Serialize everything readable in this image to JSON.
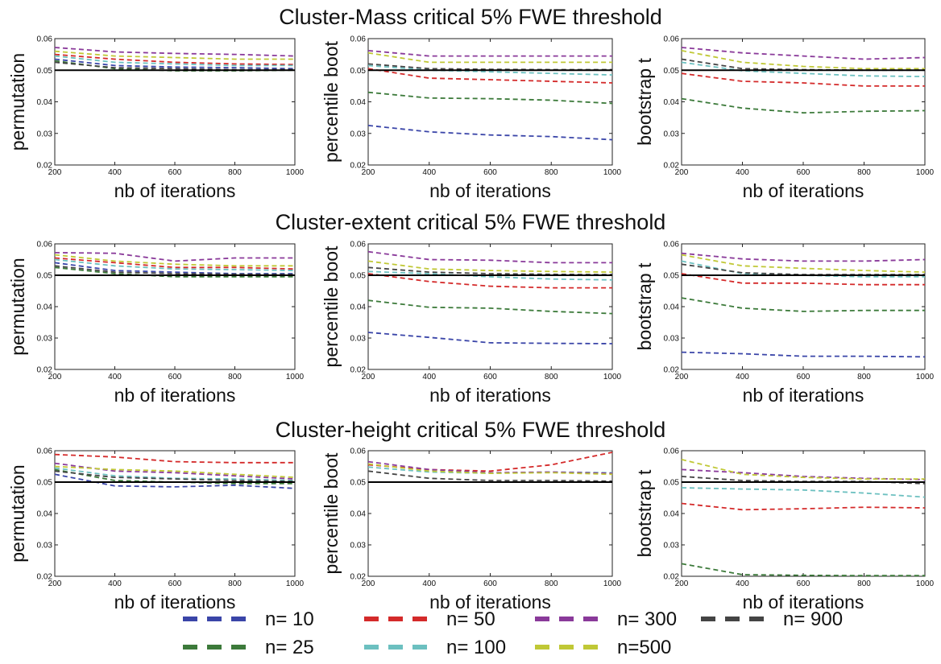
{
  "legend": {
    "items": [
      {
        "label": "n= 10",
        "color": "#3a45a8"
      },
      {
        "label": "n= 25",
        "color": "#3c7a3a"
      },
      {
        "label": "n= 50",
        "color": "#d42a2a"
      },
      {
        "label": "n= 100",
        "color": "#6cc0c0"
      },
      {
        "label": "n= 300",
        "color": "#8a3a9a"
      },
      {
        "label": "n=500",
        "color": "#c0c836"
      },
      {
        "label": "n= 900",
        "color": "#444444"
      }
    ]
  },
  "chart_data": [
    {
      "type": "line",
      "title": "Cluster-Mass critical 5% FWE threshold",
      "panels": [
        {
          "xlabel": "nb of iterations",
          "ylabel": "permutation",
          "xlim": [
            200,
            1000
          ],
          "ylim": [
            0.02,
            0.06
          ],
          "x": [
            200,
            400,
            600,
            800,
            1000
          ],
          "xticks": [
            "200",
            "400",
            "600",
            "800",
            "1000"
          ],
          "yticks": [
            "0.02",
            "0.03",
            "0.04",
            "0.05",
            "0.06"
          ],
          "reference": 0.05,
          "series": [
            {
              "name": "n= 10",
              "values": [
                0.0535,
                0.0515,
                0.051,
                0.0508,
                0.0505
              ]
            },
            {
              "name": "n= 25",
              "values": [
                0.053,
                0.0505,
                0.0498,
                0.0498,
                0.05
              ]
            },
            {
              "name": "n= 50",
              "values": [
                0.055,
                0.0535,
                0.0525,
                0.052,
                0.0518
              ]
            },
            {
              "name": "n= 100",
              "values": [
                0.0545,
                0.0525,
                0.052,
                0.0515,
                0.0515
              ]
            },
            {
              "name": "n= 300",
              "values": [
                0.0572,
                0.0558,
                0.0553,
                0.055,
                0.0545
              ]
            },
            {
              "name": "n=500",
              "values": [
                0.056,
                0.0545,
                0.054,
                0.0535,
                0.0535
              ]
            },
            {
              "name": "n= 900",
              "values": [
                0.0525,
                0.0508,
                0.0505,
                0.0502,
                0.0502
              ]
            }
          ]
        },
        {
          "xlabel": "nb of iterations",
          "ylabel": "percentile boot",
          "xlim": [
            200,
            1000
          ],
          "ylim": [
            0.02,
            0.06
          ],
          "x": [
            200,
            400,
            600,
            800,
            1000
          ],
          "xticks": [
            "200",
            "400",
            "600",
            "800",
            "1000"
          ],
          "yticks": [
            "0.02",
            "0.03",
            "0.04",
            "0.05",
            "0.06"
          ],
          "reference": 0.05,
          "series": [
            {
              "name": "n= 10",
              "values": [
                0.0325,
                0.0305,
                0.0295,
                0.029,
                0.028
              ]
            },
            {
              "name": "n= 25",
              "values": [
                0.043,
                0.0412,
                0.041,
                0.0405,
                0.0395
              ]
            },
            {
              "name": "n= 50",
              "values": [
                0.0505,
                0.0475,
                0.047,
                0.0465,
                0.046
              ]
            },
            {
              "name": "n= 100",
              "values": [
                0.0515,
                0.05,
                0.0495,
                0.049,
                0.0485
              ]
            },
            {
              "name": "n= 300",
              "values": [
                0.0562,
                0.0545,
                0.0545,
                0.0545,
                0.0545
              ]
            },
            {
              "name": "n=500",
              "values": [
                0.0555,
                0.0525,
                0.0525,
                0.0525,
                0.0525
              ]
            },
            {
              "name": "n= 900",
              "values": [
                0.052,
                0.0505,
                0.0503,
                0.0502,
                0.0502
              ]
            }
          ]
        },
        {
          "xlabel": "nb of iterations",
          "ylabel": "bootstrap t",
          "xlim": [
            200,
            1000
          ],
          "ylim": [
            0.02,
            0.06
          ],
          "x": [
            200,
            400,
            600,
            800,
            1000
          ],
          "xticks": [
            "200",
            "400",
            "600",
            "800",
            "1000"
          ],
          "yticks": [
            "0.02",
            "0.03",
            "0.04",
            "0.05",
            "0.06"
          ],
          "reference": 0.05,
          "series": [
            {
              "name": "n= 25",
              "values": [
                0.041,
                0.038,
                0.0365,
                0.037,
                0.0372
              ]
            },
            {
              "name": "n= 50",
              "values": [
                0.049,
                0.0465,
                0.046,
                0.045,
                0.045
              ]
            },
            {
              "name": "n= 100",
              "values": [
                0.0525,
                0.0498,
                0.049,
                0.0482,
                0.048
              ]
            },
            {
              "name": "n= 300",
              "values": [
                0.0572,
                0.0555,
                0.0545,
                0.0535,
                0.054
              ]
            },
            {
              "name": "n=500",
              "values": [
                0.0562,
                0.0525,
                0.0512,
                0.0505,
                0.0505
              ]
            },
            {
              "name": "n= 900",
              "values": [
                0.0535,
                0.0505,
                0.0502,
                0.05,
                0.05
              ]
            }
          ]
        }
      ]
    },
    {
      "type": "line",
      "title": "Cluster-extent critical 5% FWE threshold",
      "panels": [
        {
          "xlabel": "nb of iterations",
          "ylabel": "permutation",
          "xlim": [
            200,
            1000
          ],
          "ylim": [
            0.02,
            0.06
          ],
          "x": [
            200,
            400,
            600,
            800,
            1000
          ],
          "xticks": [
            "200",
            "400",
            "600",
            "800",
            "1000"
          ],
          "yticks": [
            "0.02",
            "0.03",
            "0.04",
            "0.05",
            "0.06"
          ],
          "reference": 0.05,
          "series": [
            {
              "name": "n= 10",
              "values": [
                0.054,
                0.0515,
                0.051,
                0.0505,
                0.0505
              ]
            },
            {
              "name": "n= 25",
              "values": [
                0.0525,
                0.0505,
                0.0495,
                0.0495,
                0.0495
              ]
            },
            {
              "name": "n= 50",
              "values": [
                0.0555,
                0.054,
                0.0525,
                0.0525,
                0.052
              ]
            },
            {
              "name": "n= 100",
              "values": [
                0.055,
                0.053,
                0.052,
                0.0518,
                0.0515
              ]
            },
            {
              "name": "n= 300",
              "values": [
                0.0572,
                0.057,
                0.0545,
                0.0555,
                0.0555
              ]
            },
            {
              "name": "n=500",
              "values": [
                0.0565,
                0.0545,
                0.0535,
                0.053,
                0.053
              ]
            },
            {
              "name": "n= 900",
              "values": [
                0.053,
                0.051,
                0.0505,
                0.0503,
                0.0502
              ]
            }
          ]
        },
        {
          "xlabel": "nb of iterations",
          "ylabel": "percentile boot",
          "xlim": [
            200,
            1000
          ],
          "ylim": [
            0.02,
            0.06
          ],
          "x": [
            200,
            400,
            600,
            800,
            1000
          ],
          "xticks": [
            "200",
            "400",
            "600",
            "800",
            "1000"
          ],
          "yticks": [
            "0.02",
            "0.03",
            "0.04",
            "0.05",
            "0.06"
          ],
          "reference": 0.05,
          "series": [
            {
              "name": "n= 10",
              "values": [
                0.0318,
                0.0302,
                0.0285,
                0.0283,
                0.0282
              ]
            },
            {
              "name": "n= 25",
              "values": [
                0.042,
                0.0398,
                0.0395,
                0.0385,
                0.0378
              ]
            },
            {
              "name": "n= 50",
              "values": [
                0.0505,
                0.048,
                0.0465,
                0.046,
                0.046
              ]
            },
            {
              "name": "n= 100",
              "values": [
                0.0512,
                0.0505,
                0.0495,
                0.0488,
                0.0485
              ]
            },
            {
              "name": "n= 300",
              "values": [
                0.0575,
                0.055,
                0.0548,
                0.054,
                0.054
              ]
            },
            {
              "name": "n=500",
              "values": [
                0.0545,
                0.052,
                0.0515,
                0.0512,
                0.051
              ]
            },
            {
              "name": "n= 900",
              "values": [
                0.0525,
                0.051,
                0.0505,
                0.0503,
                0.0502
              ]
            }
          ]
        },
        {
          "xlabel": "nb of iterations",
          "ylabel": "bootstrap t",
          "xlim": [
            200,
            1000
          ],
          "ylim": [
            0.02,
            0.06
          ],
          "x": [
            200,
            400,
            600,
            800,
            1000
          ],
          "xticks": [
            "200",
            "400",
            "600",
            "800",
            "1000"
          ],
          "yticks": [
            "0.02",
            "0.03",
            "0.04",
            "0.05",
            "0.06"
          ],
          "reference": 0.05,
          "series": [
            {
              "name": "n= 10",
              "values": [
                0.0255,
                0.025,
                0.0242,
                0.0242,
                0.024
              ]
            },
            {
              "name": "n= 25",
              "values": [
                0.0428,
                0.0395,
                0.0385,
                0.0388,
                0.0388
              ]
            },
            {
              "name": "n= 50",
              "values": [
                0.0505,
                0.0475,
                0.0475,
                0.047,
                0.047
              ]
            },
            {
              "name": "n= 100",
              "values": [
                0.0545,
                0.0505,
                0.05,
                0.0495,
                0.0495
              ]
            },
            {
              "name": "n= 300",
              "values": [
                0.057,
                0.0552,
                0.0545,
                0.0545,
                0.055
              ]
            },
            {
              "name": "n=500",
              "values": [
                0.0565,
                0.053,
                0.0522,
                0.0515,
                0.051
              ]
            },
            {
              "name": "n= 900",
              "values": [
                0.0535,
                0.0508,
                0.0502,
                0.0502,
                0.0502
              ]
            }
          ]
        }
      ]
    },
    {
      "type": "line",
      "title": "Cluster-height critical 5% FWE threshold",
      "panels": [
        {
          "xlabel": "nb of iterations",
          "ylabel": "permutation",
          "xlim": [
            200,
            1000
          ],
          "ylim": [
            0.02,
            0.06
          ],
          "x": [
            200,
            400,
            600,
            800,
            1000
          ],
          "xticks": [
            "200",
            "400",
            "600",
            "800",
            "1000"
          ],
          "yticks": [
            "0.02",
            "0.03",
            "0.04",
            "0.05",
            "0.06"
          ],
          "reference": 0.05,
          "series": [
            {
              "name": "n= 10",
              "values": [
                0.0525,
                0.0488,
                0.0485,
                0.049,
                0.048
              ]
            },
            {
              "name": "n= 25",
              "values": [
                0.054,
                0.0505,
                0.05,
                0.0495,
                0.0495
              ]
            },
            {
              "name": "n= 50",
              "values": [
                0.0588,
                0.058,
                0.0565,
                0.0562,
                0.0562
              ]
            },
            {
              "name": "n= 100",
              "values": [
                0.0545,
                0.052,
                0.0512,
                0.051,
                0.0505
              ]
            },
            {
              "name": "n= 300",
              "values": [
                0.056,
                0.0535,
                0.053,
                0.052,
                0.051
              ]
            },
            {
              "name": "n=500",
              "values": [
                0.055,
                0.054,
                0.0535,
                0.0525,
                0.0515
              ]
            },
            {
              "name": "n= 900",
              "values": [
                0.0535,
                0.0515,
                0.051,
                0.0505,
                0.0502
              ]
            }
          ]
        },
        {
          "xlabel": "nb of iterations",
          "ylabel": "percentile boot",
          "xlim": [
            200,
            1000
          ],
          "ylim": [
            0.02,
            0.06
          ],
          "x": [
            200,
            400,
            600,
            800,
            1000
          ],
          "xticks": [
            "200",
            "400",
            "600",
            "800",
            "1000"
          ],
          "yticks": [
            "0.02",
            "0.03",
            "0.04",
            "0.05",
            "0.06"
          ],
          "reference": 0.05,
          "series": [
            {
              "name": "n= 50",
              "values": [
                0.0555,
                0.054,
                0.0535,
                0.0555,
                0.0595
              ]
            },
            {
              "name": "n= 100",
              "values": [
                0.0548,
                0.0532,
                0.0528,
                0.0532,
                0.053
              ]
            },
            {
              "name": "n= 300",
              "values": [
                0.0565,
                0.054,
                0.053,
                0.0532,
                0.0528
              ]
            },
            {
              "name": "n=500",
              "values": [
                0.0558,
                0.0535,
                0.0528,
                0.053,
                0.0525
              ]
            },
            {
              "name": "n= 900",
              "values": [
                0.0535,
                0.0512,
                0.0505,
                0.0505,
                0.0503
              ]
            }
          ]
        },
        {
          "xlabel": "nb of iterations",
          "ylabel": "bootstrap t",
          "xlim": [
            200,
            1000
          ],
          "ylim": [
            0.02,
            0.06
          ],
          "x": [
            200,
            400,
            600,
            800,
            1000
          ],
          "xticks": [
            "200",
            "400",
            "600",
            "800",
            "1000"
          ],
          "yticks": [
            "0.02",
            "0.03",
            "0.04",
            "0.05",
            "0.06"
          ],
          "reference": 0.05,
          "series": [
            {
              "name": "n= 25",
              "values": [
                0.024,
                0.0205,
                0.0203,
                0.0202,
                0.0202
              ]
            },
            {
              "name": "n= 50",
              "values": [
                0.0432,
                0.0412,
                0.0415,
                0.042,
                0.0418
              ]
            },
            {
              "name": "n= 100",
              "values": [
                0.0482,
                0.0478,
                0.0475,
                0.0465,
                0.0452
              ]
            },
            {
              "name": "n= 300",
              "values": [
                0.054,
                0.053,
                0.0518,
                0.0512,
                0.0508
              ]
            },
            {
              "name": "n=500",
              "values": [
                0.0572,
                0.0525,
                0.0515,
                0.051,
                0.051
              ]
            },
            {
              "name": "n= 900",
              "values": [
                0.0518,
                0.0505,
                0.0502,
                0.0502,
                0.0495
              ]
            }
          ]
        }
      ]
    }
  ]
}
